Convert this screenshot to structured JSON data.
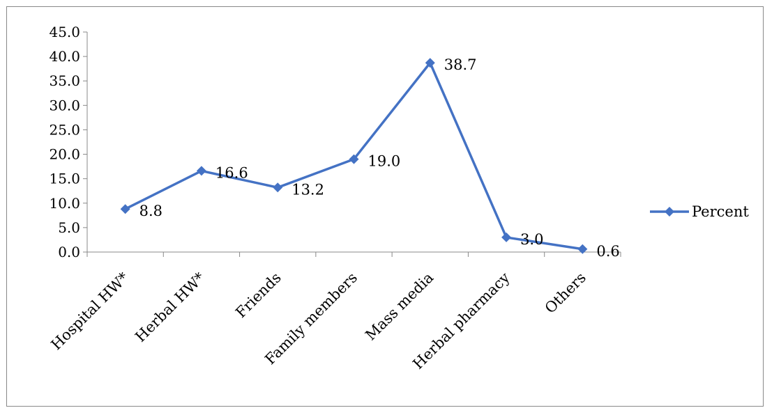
{
  "chart_data": {
    "type": "line",
    "categories": [
      "Hospital HW*",
      "Herbal HW*",
      "Friends",
      "Family members",
      "Mass media",
      "Herbal pharmacy",
      "Others"
    ],
    "series": [
      {
        "name": "Percent",
        "values": [
          8.8,
          16.6,
          13.2,
          19.0,
          38.7,
          3.0,
          0.6
        ],
        "data_labels": [
          "8.8",
          "16.6",
          "13.2",
          "19.0",
          "38.7",
          "3.0",
          "0.6"
        ],
        "color": "#4472C4",
        "marker": "diamond"
      }
    ],
    "ylim": [
      0,
      45
    ],
    "y_ticks": [
      "0.0",
      "5.0",
      "10.0",
      "15.0",
      "20.0",
      "25.0",
      "30.0",
      "35.0",
      "40.0",
      "45.0"
    ],
    "grid": false,
    "legend": {
      "placement": "right",
      "entries": [
        "Percent"
      ]
    },
    "colors": {
      "line": "#4472C4",
      "marker": "#4472C4",
      "axis": "#888888",
      "frame": "#888888"
    }
  }
}
